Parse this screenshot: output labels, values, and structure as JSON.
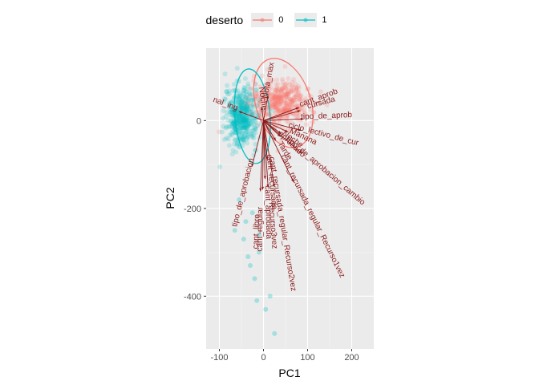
{
  "chart_data": {
    "type": "scatter",
    "subtype": "pca-biplot",
    "xlabel": "PC1",
    "ylabel": "PC2",
    "xlim": [
      -130,
      250
    ],
    "ylim": [
      -520,
      165
    ],
    "x_ticks": [
      -100,
      0,
      100,
      200
    ],
    "y_ticks": [
      0,
      -200,
      -400
    ],
    "x_tick_labels": [
      "-100",
      "0",
      "100",
      "200"
    ],
    "y_tick_labels": [
      "0",
      "-200",
      "-400"
    ],
    "grid": true,
    "legend": {
      "title": "deserto",
      "position": "top",
      "entries": [
        "0",
        "1"
      ]
    },
    "colors": {
      "group_0": "#F8766D",
      "group_1": "#00BFC4",
      "arrow": "#8B1A1A",
      "panel": "#EBEBEB",
      "grid": "#FFFFFF"
    },
    "point_alpha": 0.2,
    "series": [
      {
        "name": "0",
        "center": [
          40,
          40
        ],
        "spread": [
          55,
          45
        ],
        "ellipse": {
          "center": [
            45,
            40
          ],
          "rx": 62,
          "ry": 105,
          "angle_deg": 18
        }
      },
      {
        "name": "1",
        "center": [
          -50,
          10
        ],
        "spread": [
          30,
          55
        ],
        "ellipse": {
          "center": [
            -25,
            10
          ],
          "rx": 40,
          "ry": 108,
          "angle_deg": 5
        }
      }
    ],
    "outliers": [
      [
        -15,
        -410
      ],
      [
        15,
        -400
      ],
      [
        25,
        -485
      ],
      [
        -30,
        -330
      ],
      [
        -10,
        -300
      ],
      [
        -65,
        -250
      ],
      [
        -45,
        -270
      ],
      [
        -20,
        -360
      ],
      [
        5,
        -430
      ],
      [
        -25,
        -210
      ],
      [
        -55,
        -180
      ],
      [
        -40,
        -230
      ],
      [
        -10,
        -260
      ],
      [
        -35,
        -310
      ]
    ],
    "loadings": [
      {
        "label": "Noche",
        "x": -12,
        "y": 90
      },
      {
        "label": "Nota_max",
        "x": 30,
        "y": 165
      },
      {
        "label": "nal_ing",
        "x": -160,
        "y": 60
      },
      {
        "label": "cant_aprob",
        "x": 230,
        "y": 85
      },
      {
        "label": "cursada",
        "x": 240,
        "y": 65
      },
      {
        "label": "tipo_de_aprob",
        "x": 260,
        "y": 10
      },
      {
        "label": "ciclo_lectivo_de_cur",
        "x": 245,
        "y": -65
      },
      {
        "label": "Manana",
        "x": 160,
        "y": -75
      },
      {
        "label": "Noche",
        "x": 115,
        "y": -85
      },
      {
        "label": "aprobado",
        "x": 110,
        "y": -105
      },
      {
        "label": "tipo_de_aprobacion_cambio",
        "x": 250,
        "y": -215
      },
      {
        "label": "Tarde",
        "x": 80,
        "y": -130
      },
      {
        "label": "cant_recursada_regular_Recurso1vez",
        "x": 195,
        "y": -400
      },
      {
        "label": "cant_recursada_regular_Recurso2vez",
        "x": 70,
        "y": -430
      },
      {
        "label": "cant_recursada",
        "x": 25,
        "y": -255
      },
      {
        "label": "tipo_de_aprobacion",
        "x": -75,
        "y": -300
      },
      {
        "label": "Recurso3vez",
        "x": 30,
        "y": -435
      },
      {
        "label": "cant_regular",
        "x": -5,
        "y": -450
      },
      {
        "label": "cant_libre",
        "x": -20,
        "y": -460
      },
      {
        "label": "cant_aprobada",
        "x": 10,
        "y": -380
      }
    ]
  }
}
